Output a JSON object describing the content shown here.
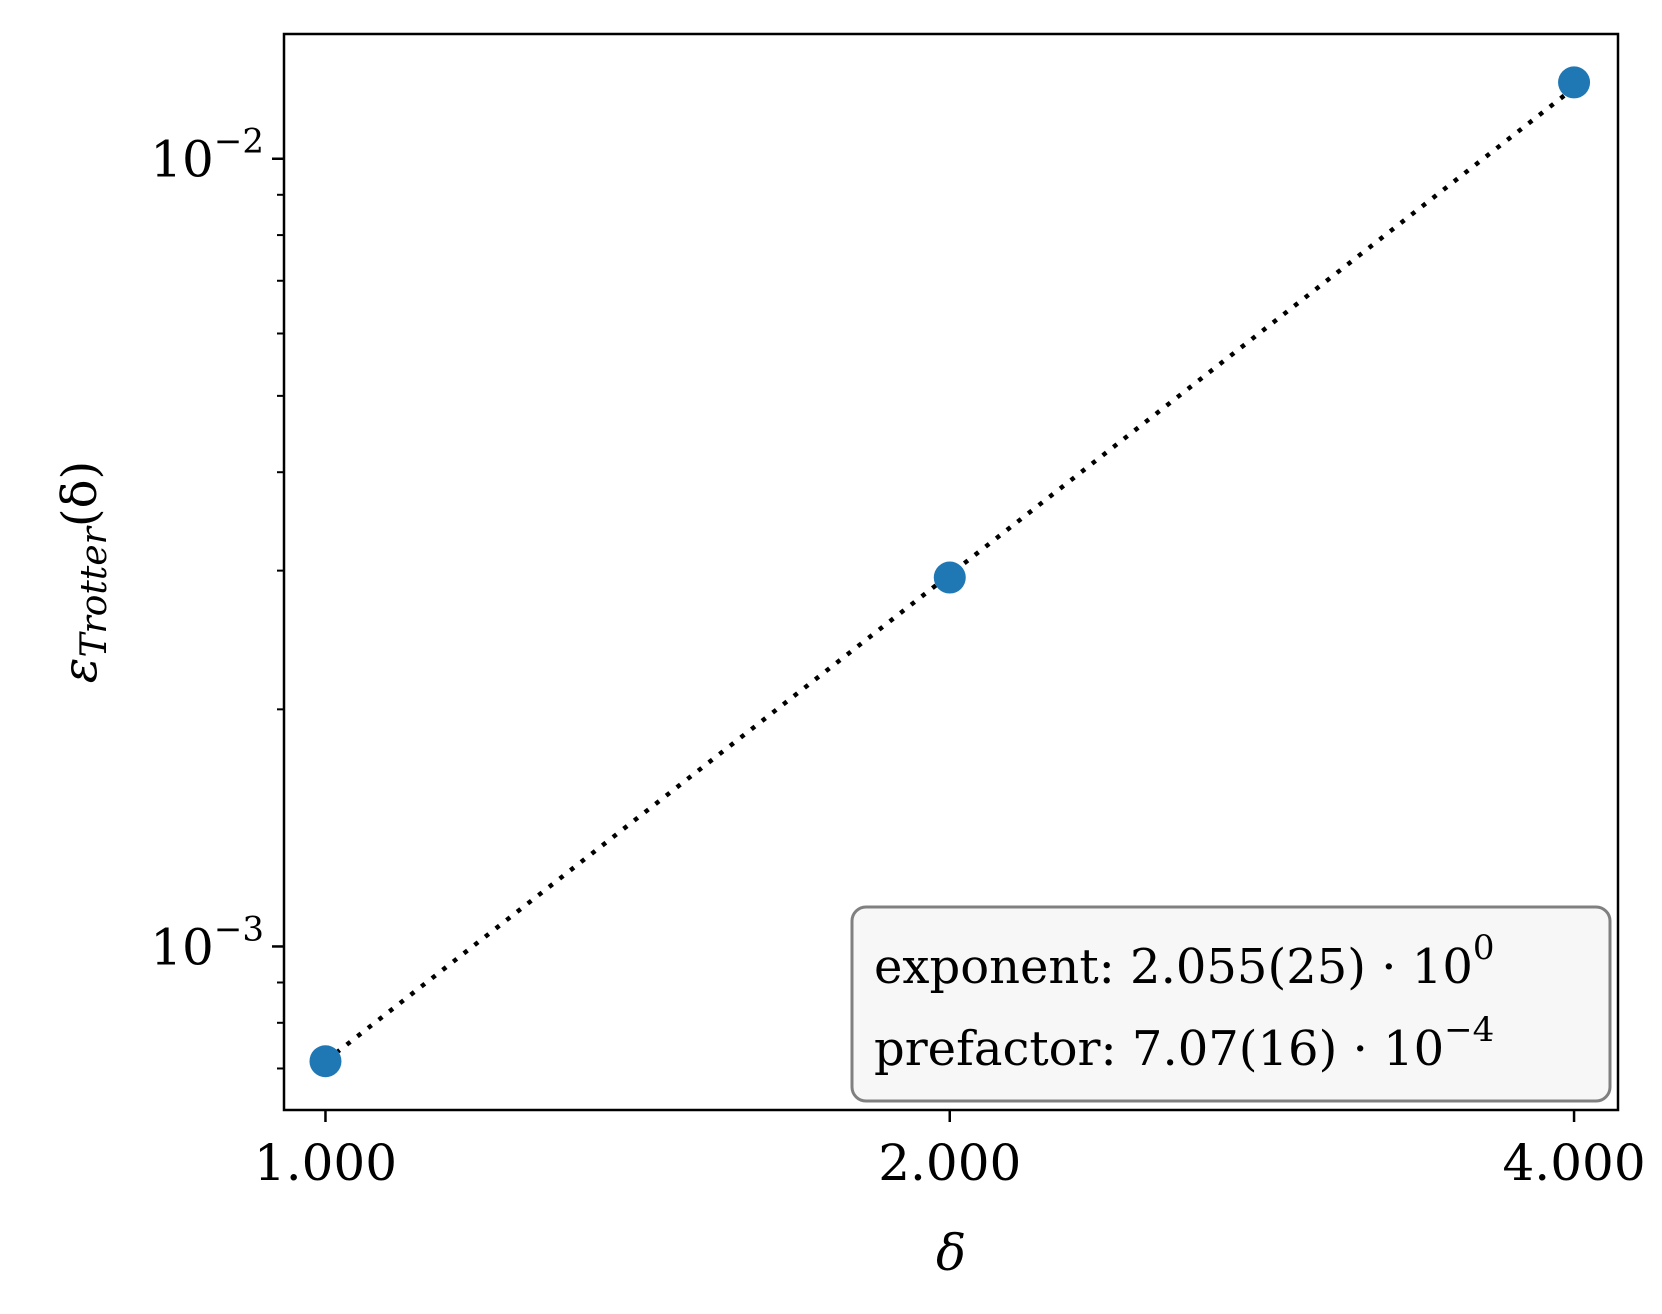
{
  "chart_data": {
    "type": "scatter",
    "x_scale": "log",
    "y_scale": "log",
    "xlabel": "δ",
    "ylabel_main": "ε",
    "ylabel_sub": "Trotter",
    "ylabel_tail": "(δ)",
    "xlim": [
      0.955,
      4.2
    ],
    "ylim": [
      0.00062,
      0.0144
    ],
    "x_ticks": [
      {
        "value": 1.0,
        "label": "1.000"
      },
      {
        "value": 2.0,
        "label": "2.000"
      },
      {
        "value": 4.0,
        "label": "4.000"
      }
    ],
    "y_major_ticks": [
      {
        "value": 0.001,
        "base": "10",
        "exp": "−3"
      },
      {
        "value": 0.01,
        "base": "10",
        "exp": "−2"
      }
    ],
    "y_minor_ticks": [
      0.0007,
      0.0008,
      0.0009,
      0.002,
      0.003,
      0.004,
      0.005,
      0.006,
      0.007,
      0.008,
      0.009
    ],
    "series": [
      {
        "x": [
          1.0,
          2.0,
          4.0
        ],
        "y": [
          0.000715,
          0.00294,
          0.0125
        ],
        "color": "#1f77b4"
      }
    ],
    "fit_line": {
      "x": [
        1.0,
        4.0
      ],
      "y": [
        0.000715,
        0.0123
      ],
      "style": "dotted",
      "color": "#000000"
    },
    "annotation": {
      "lines": [
        {
          "text": "exponent:  2.055(25) · 10",
          "exp": "0"
        },
        {
          "text": "prefactor:  7.07(16) · 10",
          "exp": "−4"
        }
      ],
      "placement": "bottom-right"
    }
  }
}
